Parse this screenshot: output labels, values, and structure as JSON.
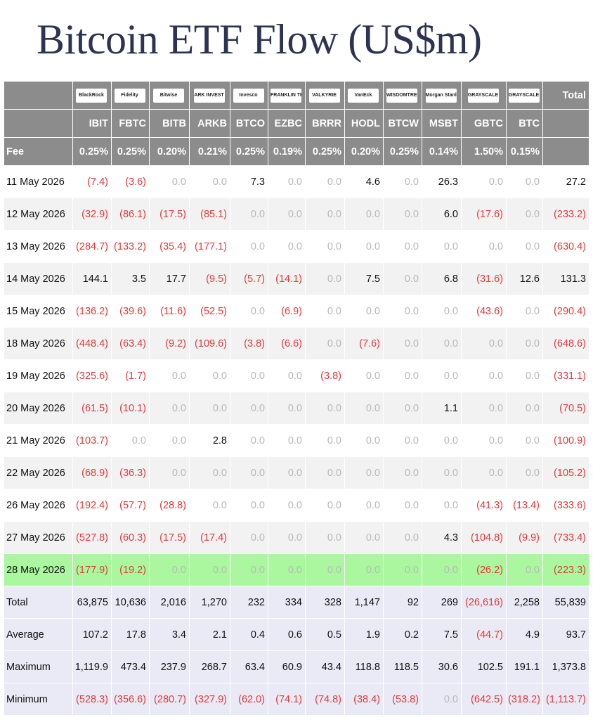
{
  "title": "Bitcoin ETF Flow (US$m)",
  "table": {
    "logos": [
      "BlackRock",
      "Fidelity",
      "Bitwise",
      "ARK INVEST",
      "Invesco",
      "FRANKLIN TEMPLETON",
      "VALKYRIE",
      "VanEck",
      "WISDOMTREE",
      "Morgan Stanley",
      "GRAYSCALE",
      "GRAYSCALE"
    ],
    "total_header": "Total",
    "tickers": [
      "IBIT",
      "FBTC",
      "BITB",
      "ARKB",
      "BTCO",
      "EZBC",
      "BRRR",
      "HODL",
      "BTCW",
      "MSBT",
      "GBTC",
      "BTC"
    ],
    "fee_label": "Fee",
    "fees": [
      "0.25%",
      "0.25%",
      "0.20%",
      "0.21%",
      "0.25%",
      "0.19%",
      "0.25%",
      "0.20%",
      "0.25%",
      "0.14%",
      "1.50%",
      "0.15%"
    ],
    "rows": [
      [
        "11 May 2026",
        "(7.4)",
        "(3.6)",
        "0.0",
        "0.0",
        "7.3",
        "0.0",
        "0.0",
        "4.6",
        "0.0",
        "26.3",
        "0.0",
        "0.0",
        "27.2"
      ],
      [
        "12 May 2026",
        "(32.9)",
        "(86.1)",
        "(17.5)",
        "(85.1)",
        "0.0",
        "0.0",
        "0.0",
        "0.0",
        "0.0",
        "6.0",
        "(17.6)",
        "0.0",
        "(233.2)"
      ],
      [
        "13 May 2026",
        "(284.7)",
        "(133.2)",
        "(35.4)",
        "(177.1)",
        "0.0",
        "0.0",
        "0.0",
        "0.0",
        "0.0",
        "0.0",
        "0.0",
        "0.0",
        "(630.4)"
      ],
      [
        "14 May 2026",
        "144.1",
        "3.5",
        "17.7",
        "(9.5)",
        "(5.7)",
        "(14.1)",
        "0.0",
        "7.5",
        "0.0",
        "6.8",
        "(31.6)",
        "12.6",
        "131.3"
      ],
      [
        "15 May 2026",
        "(136.2)",
        "(39.6)",
        "(11.6)",
        "(52.5)",
        "0.0",
        "(6.9)",
        "0.0",
        "0.0",
        "0.0",
        "0.0",
        "(43.6)",
        "0.0",
        "(290.4)"
      ],
      [
        "18 May 2026",
        "(448.4)",
        "(63.4)",
        "(9.2)",
        "(109.6)",
        "(3.8)",
        "(6.6)",
        "0.0",
        "(7.6)",
        "0.0",
        "0.0",
        "0.0",
        "0.0",
        "(648.6)"
      ],
      [
        "19 May 2026",
        "(325.6)",
        "(1.7)",
        "0.0",
        "0.0",
        "0.0",
        "0.0",
        "(3.8)",
        "0.0",
        "0.0",
        "0.0",
        "0.0",
        "0.0",
        "(331.1)"
      ],
      [
        "20 May 2026",
        "(61.5)",
        "(10.1)",
        "0.0",
        "0.0",
        "0.0",
        "0.0",
        "0.0",
        "0.0",
        "0.0",
        "1.1",
        "0.0",
        "0.0",
        "(70.5)"
      ],
      [
        "21 May 2026",
        "(103.7)",
        "0.0",
        "0.0",
        "2.8",
        "0.0",
        "0.0",
        "0.0",
        "0.0",
        "0.0",
        "0.0",
        "0.0",
        "0.0",
        "(100.9)"
      ],
      [
        "22 May 2026",
        "(68.9)",
        "(36.3)",
        "0.0",
        "0.0",
        "0.0",
        "0.0",
        "0.0",
        "0.0",
        "0.0",
        "0.0",
        "0.0",
        "0.0",
        "(105.2)"
      ],
      [
        "26 May 2026",
        "(192.4)",
        "(57.7)",
        "(28.8)",
        "0.0",
        "0.0",
        "0.0",
        "0.0",
        "0.0",
        "0.0",
        "0.0",
        "(41.3)",
        "(13.4)",
        "(333.6)"
      ],
      [
        "27 May 2026",
        "(527.8)",
        "(60.3)",
        "(17.5)",
        "(17.4)",
        "0.0",
        "0.0",
        "0.0",
        "0.0",
        "0.0",
        "4.3",
        "(104.8)",
        "(9.9)",
        "(733.4)"
      ],
      [
        "28 May 2026",
        "(177.9)",
        "(19.2)",
        "0.0",
        "0.0",
        "0.0",
        "0.0",
        "0.0",
        "0.0",
        "0.0",
        "0.0",
        "(26.2)",
        "0.0",
        "(223.3)"
      ]
    ],
    "summary": [
      [
        "Total",
        "63,875",
        "10,636",
        "2,016",
        "1,270",
        "232",
        "334",
        "328",
        "1,147",
        "92",
        "269",
        "(26,616)",
        "2,258",
        "55,839"
      ],
      [
        "Average",
        "107.2",
        "17.8",
        "3.4",
        "2.1",
        "0.4",
        "0.6",
        "0.5",
        "1.9",
        "0.2",
        "7.5",
        "(44.7)",
        "4.9",
        "93.7"
      ],
      [
        "Maximum",
        "1,119.9",
        "473.4",
        "237.9",
        "268.7",
        "63.4",
        "60.9",
        "43.4",
        "118.8",
        "118.5",
        "30.6",
        "102.5",
        "191.1",
        "1,373.8"
      ],
      [
        "Minimum",
        "(528.3)",
        "(356.6)",
        "(280.7)",
        "(327.9)",
        "(62.0)",
        "(74.1)",
        "(74.8)",
        "(38.4)",
        "(53.8)",
        "0.0",
        "(642.5)",
        "(318.2)",
        "(1,113.7)"
      ]
    ]
  }
}
